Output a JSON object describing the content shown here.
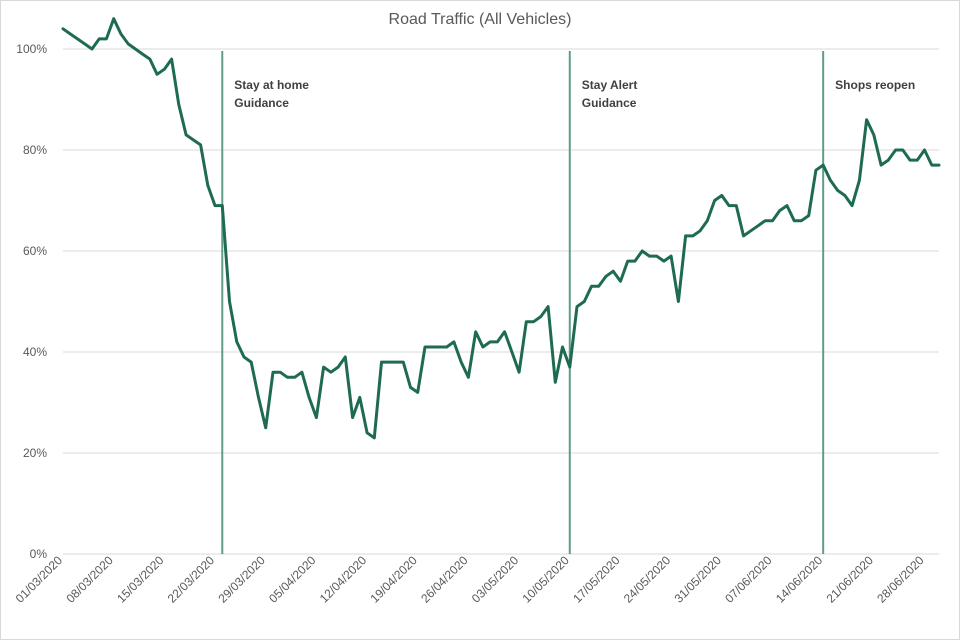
{
  "chart_data": {
    "type": "line",
    "title": "Road Traffic (All Vehicles)",
    "xlabel": "",
    "ylabel": "",
    "ylim": [
      0,
      1.0
    ],
    "yticks": [
      0,
      0.2,
      0.4,
      0.6,
      0.8,
      1.0
    ],
    "ytick_labels": [
      "0%",
      "20%",
      "40%",
      "60%",
      "80%",
      "100%"
    ],
    "grid": true,
    "legend": "none",
    "line_color": "#1e6b52",
    "marker_line_color": "#5e9e86",
    "xtick_labels": [
      "01/03/2020",
      "08/03/2020",
      "15/03/2020",
      "22/03/2020",
      "29/03/2020",
      "05/04/2020",
      "12/04/2020",
      "19/04/2020",
      "26/04/2020",
      "03/05/2020",
      "10/05/2020",
      "17/05/2020",
      "24/05/2020",
      "31/05/2020",
      "07/06/2020",
      "14/06/2020",
      "21/06/2020",
      "28/06/2020"
    ],
    "x_start": "2020-03-01",
    "x_end": "2020-06-30",
    "series": [
      {
        "values": [
          1.04,
          1.03,
          1.02,
          1.01,
          1.0,
          1.02,
          1.02,
          1.06,
          1.03,
          1.01,
          1.0,
          0.99,
          0.98,
          0.95,
          0.96,
          0.98,
          0.89,
          0.83,
          0.82,
          0.81,
          0.73,
          0.69,
          0.69,
          0.5,
          0.42,
          0.39,
          0.38,
          0.31,
          0.25,
          0.36,
          0.36,
          0.35,
          0.35,
          0.36,
          0.31,
          0.27,
          0.37,
          0.36,
          0.37,
          0.39,
          0.27,
          0.31,
          0.24,
          0.23,
          0.38,
          0.38,
          0.38,
          0.38,
          0.33,
          0.32,
          0.41,
          0.41,
          0.41,
          0.41,
          0.42,
          0.38,
          0.35,
          0.44,
          0.41,
          0.42,
          0.42,
          0.44,
          0.4,
          0.36,
          0.46,
          0.46,
          0.47,
          0.49,
          0.34,
          0.41,
          0.37,
          0.49,
          0.5,
          0.53,
          0.53,
          0.55,
          0.56,
          0.54,
          0.58,
          0.58,
          0.6,
          0.59,
          0.59,
          0.58,
          0.59,
          0.5,
          0.63,
          0.63,
          0.64,
          0.66,
          0.7,
          0.71,
          0.69,
          0.69,
          0.63,
          0.64,
          0.65,
          0.66,
          0.66,
          0.68,
          0.69,
          0.66,
          0.66,
          0.67,
          0.76,
          0.77,
          0.74,
          0.72,
          0.71,
          0.69,
          0.74,
          0.86,
          0.83,
          0.77,
          0.78,
          0.8,
          0.8,
          0.78,
          0.78,
          0.8,
          0.77,
          0.77
        ]
      }
    ],
    "annotations": [
      {
        "date": "2020-03-23",
        "lines": [
          "Stay at home",
          "Guidance"
        ]
      },
      {
        "date": "2020-05-10",
        "lines": [
          "Stay Alert",
          "Guidance"
        ]
      },
      {
        "date": "2020-06-14",
        "lines": [
          "Shops reopen"
        ]
      }
    ]
  }
}
